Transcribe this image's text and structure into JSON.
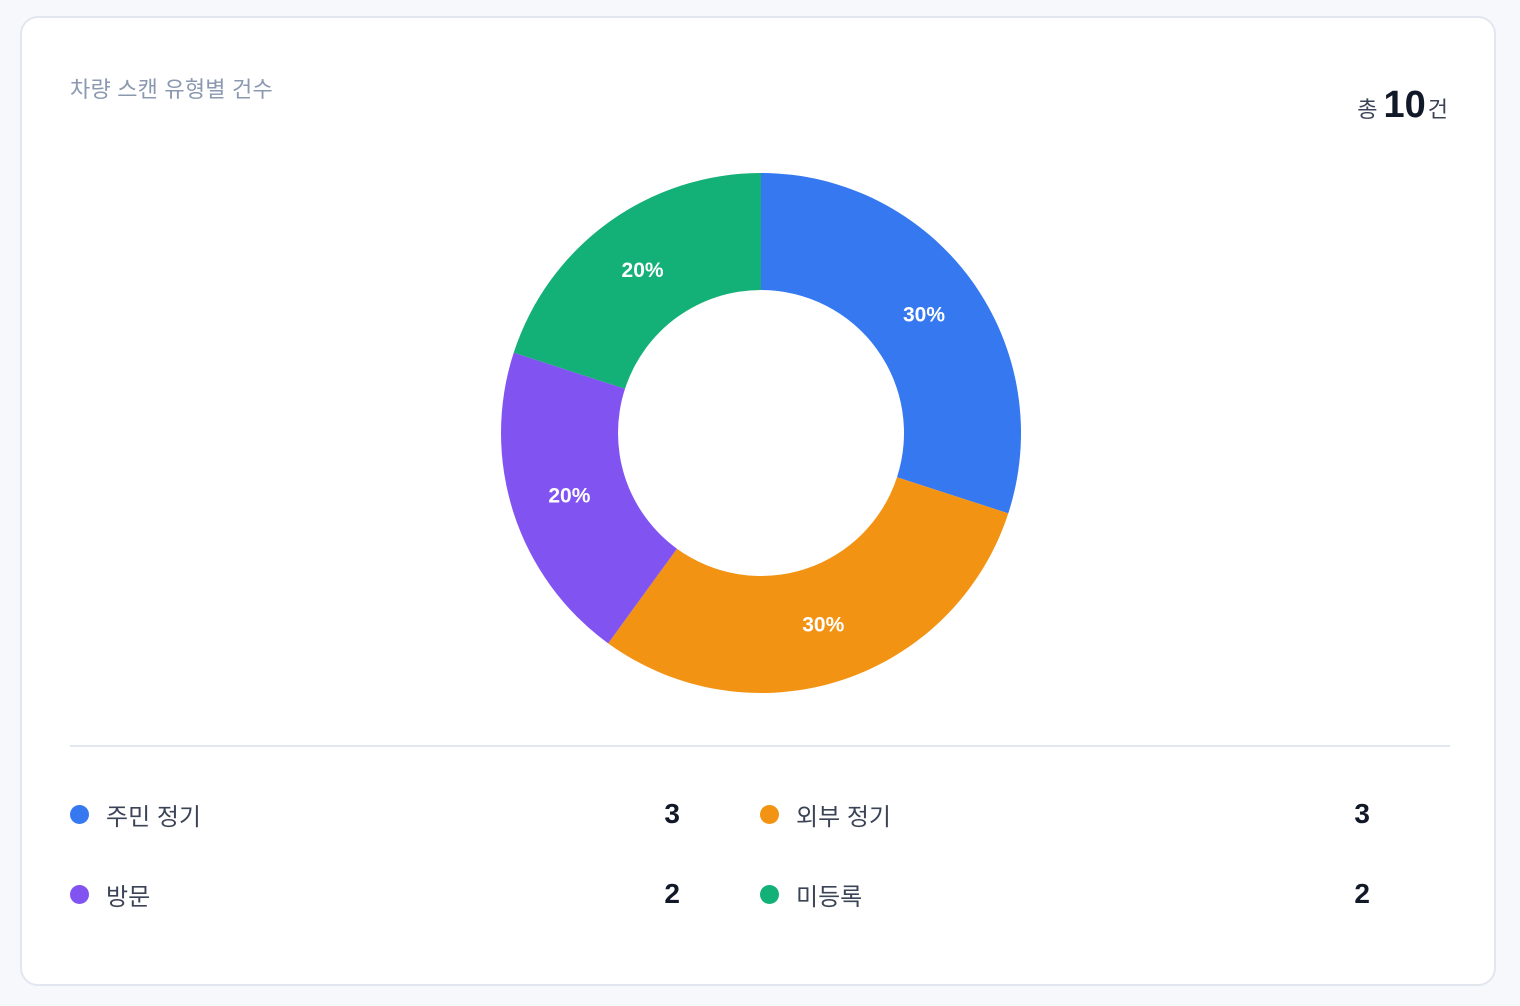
{
  "card": {
    "title": "차량 스캔 유형별 건수",
    "total_prefix": "총",
    "total_value": "10",
    "total_suffix": "건"
  },
  "legend": [
    {
      "label": "주민 정기",
      "value": "3",
      "color": "#3578f0"
    },
    {
      "label": "외부 정기",
      "value": "3",
      "color": "#f39313"
    },
    {
      "label": "방문",
      "value": "2",
      "color": "#8154f2"
    },
    {
      "label": "미등록",
      "value": "2",
      "color": "#13b077"
    }
  ],
  "chart_data": {
    "type": "pie",
    "variant": "donut",
    "title": "차량 스캔 유형별 건수",
    "total": 10,
    "categories": [
      "주민 정기",
      "외부 정기",
      "방문",
      "미등록"
    ],
    "values": [
      3,
      3,
      2,
      2
    ],
    "percent_labels": [
      "30%",
      "30%",
      "20%",
      "20%"
    ],
    "colors": [
      "#3578f0",
      "#f39313",
      "#8154f2",
      "#13b077"
    ],
    "start_angle": "12 o'clock, clockwise",
    "legend_position": "bottom"
  }
}
